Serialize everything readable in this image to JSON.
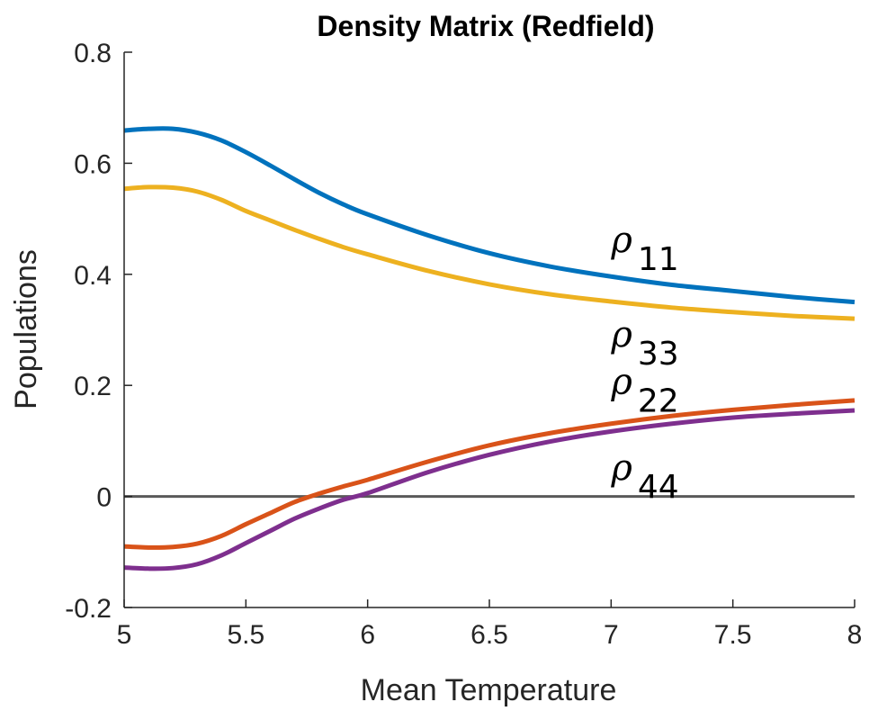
{
  "chart_data": {
    "type": "line",
    "title": "Density Matrix (Redfield)",
    "xlabel": "Mean Temperature",
    "ylabel": "Populations",
    "xlim": [
      5,
      8
    ],
    "ylim": [
      -0.2,
      0.8
    ],
    "x_ticks": [
      5,
      5.5,
      6,
      6.5,
      7,
      7.5,
      8
    ],
    "x_tick_labels": [
      "5",
      "5.5",
      "6",
      "6.5",
      "7",
      "7.5",
      "8"
    ],
    "y_ticks": [
      -0.2,
      0,
      0.2,
      0.4,
      0.6,
      0.8
    ],
    "y_tick_labels": [
      "-0.2",
      "0",
      "0.2",
      "0.4",
      "0.6",
      "0.8"
    ],
    "grid": false,
    "zero_line": {
      "y": 0,
      "color": "#595959"
    },
    "x": [
      5.0,
      5.1,
      5.2,
      5.3,
      5.4,
      5.5,
      5.6,
      5.7,
      5.8,
      5.9,
      6.0,
      6.25,
      6.5,
      6.75,
      7.0,
      7.25,
      7.5,
      7.75,
      8.0
    ],
    "series": [
      {
        "name": "11",
        "color": "#0072BD",
        "values": [
          0.659,
          0.662,
          0.662,
          0.655,
          0.641,
          0.62,
          0.596,
          0.571,
          0.547,
          0.526,
          0.508,
          0.47,
          0.438,
          0.414,
          0.396,
          0.381,
          0.37,
          0.359,
          0.35
        ]
      },
      {
        "name": "33",
        "color": "#EDB120",
        "values": [
          0.554,
          0.557,
          0.556,
          0.549,
          0.534,
          0.514,
          0.497,
          0.48,
          0.464,
          0.449,
          0.436,
          0.406,
          0.382,
          0.364,
          0.351,
          0.34,
          0.332,
          0.325,
          0.32
        ]
      },
      {
        "name": "22",
        "color": "#D95319",
        "values": [
          -0.09,
          -0.092,
          -0.091,
          -0.085,
          -0.071,
          -0.05,
          -0.03,
          -0.01,
          0.005,
          0.018,
          0.03,
          0.063,
          0.092,
          0.114,
          0.131,
          0.145,
          0.156,
          0.165,
          0.173
        ]
      },
      {
        "name": "44",
        "color": "#7E2F8E",
        "values": [
          -0.128,
          -0.13,
          -0.129,
          -0.122,
          -0.106,
          -0.084,
          -0.062,
          -0.04,
          -0.022,
          -0.006,
          0.006,
          0.044,
          0.075,
          0.099,
          0.117,
          0.131,
          0.142,
          0.149,
          0.155
        ]
      }
    ],
    "annotations": [
      {
        "symbol": "ρ",
        "subscript": "11",
        "x": 7.0,
        "y": 0.44
      },
      {
        "symbol": "ρ",
        "subscript": "33",
        "x": 7.0,
        "y": 0.27
      },
      {
        "symbol": "ρ",
        "subscript": "22",
        "x": 7.0,
        "y": 0.185
      },
      {
        "symbol": "ρ",
        "subscript": "44",
        "x": 7.0,
        "y": 0.03
      }
    ]
  }
}
